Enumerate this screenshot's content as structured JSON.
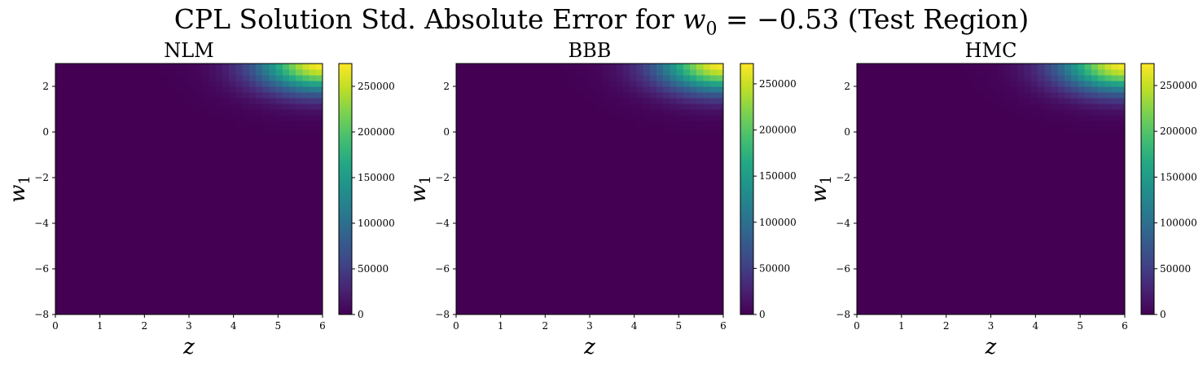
{
  "figure": {
    "title_prefix": "CPL Solution Std. Absolute Error for ",
    "title_var": "w",
    "title_sub": "0",
    "title_eq": " = −0.53 (Test Region)"
  },
  "chart_data": [
    {
      "type": "heatmap",
      "title": "NLM",
      "xlabel": "z",
      "ylabel_var": "w",
      "ylabel_sub": "1",
      "xlim": [
        0,
        6
      ],
      "ylim": [
        -8,
        3
      ],
      "xticks": [
        "0",
        "1",
        "2",
        "3",
        "4",
        "5",
        "6"
      ],
      "yticks": [
        "−8",
        "−6",
        "−4",
        "−2",
        "0",
        "2"
      ],
      "yticks_values": [
        -8,
        -6,
        -4,
        -2,
        0,
        2
      ],
      "colorbar": {
        "colormap": "viridis",
        "range": [
          0,
          275000
        ],
        "ticks": [
          "0",
          "50000",
          "100000",
          "150000",
          "200000",
          "250000"
        ],
        "ticks_values": [
          0,
          50000,
          100000,
          150000,
          200000,
          250000
        ]
      },
      "values_summary": {
        "min": 0,
        "max": 275000,
        "peak_location": {
          "z": 6,
          "w1": 3
        }
      }
    },
    {
      "type": "heatmap",
      "title": "BBB",
      "xlabel": "z",
      "ylabel_var": "w",
      "ylabel_sub": "1",
      "xlim": [
        0,
        6
      ],
      "ylim": [
        -8,
        3
      ],
      "xticks": [
        "0",
        "1",
        "2",
        "3",
        "4",
        "5",
        "6"
      ],
      "yticks": [
        "−8",
        "−6",
        "−4",
        "−2",
        "0",
        "2"
      ],
      "yticks_values": [
        -8,
        -6,
        -4,
        -2,
        0,
        2
      ],
      "colorbar": {
        "colormap": "viridis",
        "range": [
          0,
          272000
        ],
        "ticks": [
          "0",
          "50000",
          "100000",
          "150000",
          "200000",
          "250000"
        ],
        "ticks_values": [
          0,
          50000,
          100000,
          150000,
          200000,
          250000
        ]
      },
      "values_summary": {
        "min": 0,
        "max": 272000,
        "peak_location": {
          "z": 6,
          "w1": 3
        }
      }
    },
    {
      "type": "heatmap",
      "title": "HMC",
      "xlabel": "z",
      "ylabel_var": "w",
      "ylabel_sub": "1",
      "xlim": [
        0,
        6
      ],
      "ylim": [
        -8,
        3
      ],
      "xticks": [
        "0",
        "1",
        "2",
        "3",
        "4",
        "5",
        "6"
      ],
      "yticks": [
        "−8",
        "−6",
        "−4",
        "−2",
        "0",
        "2"
      ],
      "yticks_values": [
        -8,
        -6,
        -4,
        -2,
        0,
        2
      ],
      "colorbar": {
        "colormap": "viridis",
        "range": [
          0,
          274000
        ],
        "ticks": [
          "0",
          "50000",
          "100000",
          "150000",
          "200000",
          "250000"
        ],
        "ticks_values": [
          0,
          50000,
          100000,
          150000,
          200000,
          250000
        ]
      },
      "values_summary": {
        "min": 0,
        "max": 274000,
        "peak_location": {
          "z": 6,
          "w1": 3
        }
      }
    }
  ]
}
